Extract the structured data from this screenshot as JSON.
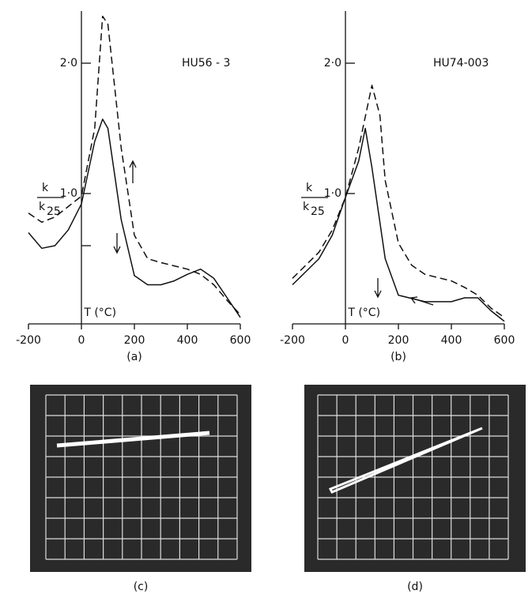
{
  "chart_data": [
    {
      "type": "line",
      "caption": "(a)",
      "annotation": "HU56 - 3",
      "xlabel": "T (°C)",
      "ylabel_numerator": "k",
      "ylabel_denominator": "k",
      "ylabel_subscript": "25",
      "xlim": [
        -200,
        600
      ],
      "xticks": [
        -200,
        0,
        200,
        400,
        600
      ],
      "ylim": [
        0,
        2.4
      ],
      "yticks": [
        {
          "value": 0.6,
          "label": null
        },
        {
          "value": 1.0,
          "label": "1·0"
        },
        {
          "value": 2.0,
          "label": "2·0"
        }
      ],
      "series": [
        {
          "style": "dashed",
          "color": "#111111",
          "x": [
            -200,
            -150,
            -100,
            -50,
            0,
            50,
            80,
            100,
            150,
            200,
            250,
            300,
            400,
            450,
            500,
            550,
            600
          ],
          "values": [
            0.85,
            0.78,
            0.82,
            0.9,
            0.98,
            1.5,
            2.36,
            2.3,
            1.35,
            0.68,
            0.5,
            0.47,
            0.42,
            0.38,
            0.3,
            0.18,
            0.07
          ]
        },
        {
          "style": "solid",
          "color": "#111111",
          "x": [
            -200,
            -150,
            -100,
            -50,
            0,
            50,
            80,
            100,
            150,
            200,
            250,
            300,
            350,
            400,
            450,
            500,
            550,
            600
          ],
          "values": [
            0.7,
            0.58,
            0.6,
            0.72,
            0.92,
            1.4,
            1.57,
            1.5,
            0.8,
            0.37,
            0.3,
            0.3,
            0.33,
            0.38,
            0.42,
            0.35,
            0.2,
            0.05
          ]
        }
      ]
    },
    {
      "type": "line",
      "caption": "(b)",
      "annotation": "HU74-003",
      "xlabel": "T (°C)",
      "ylabel_numerator": "k",
      "ylabel_denominator": "k",
      "ylabel_subscript": "25",
      "xlim": [
        -200,
        600
      ],
      "xticks": [
        -200,
        0,
        200,
        400,
        600
      ],
      "ylim": [
        0,
        2.4
      ],
      "yticks": [
        {
          "value": 1.0,
          "label": "1·0"
        },
        {
          "value": 2.0,
          "label": "2·0"
        }
      ],
      "series": [
        {
          "style": "dashed",
          "color": "#111111",
          "x": [
            -200,
            -150,
            -100,
            -50,
            0,
            50,
            100,
            130,
            150,
            200,
            250,
            300,
            400,
            450,
            500,
            550,
            600
          ],
          "values": [
            0.35,
            0.45,
            0.55,
            0.72,
            0.97,
            1.35,
            1.83,
            1.6,
            1.1,
            0.62,
            0.45,
            0.38,
            0.33,
            0.28,
            0.22,
            0.12,
            0.05
          ]
        },
        {
          "style": "solid",
          "color": "#111111",
          "x": [
            -200,
            -150,
            -100,
            -50,
            0,
            50,
            75,
            100,
            150,
            200,
            300,
            400,
            450,
            500,
            550,
            600
          ],
          "values": [
            0.3,
            0.4,
            0.5,
            0.68,
            0.97,
            1.25,
            1.5,
            1.2,
            0.5,
            0.22,
            0.17,
            0.17,
            0.2,
            0.2,
            0.1,
            0.02
          ]
        }
      ]
    }
  ],
  "panels": [
    {
      "caption": "(c)"
    },
    {
      "caption": "(d)"
    }
  ]
}
